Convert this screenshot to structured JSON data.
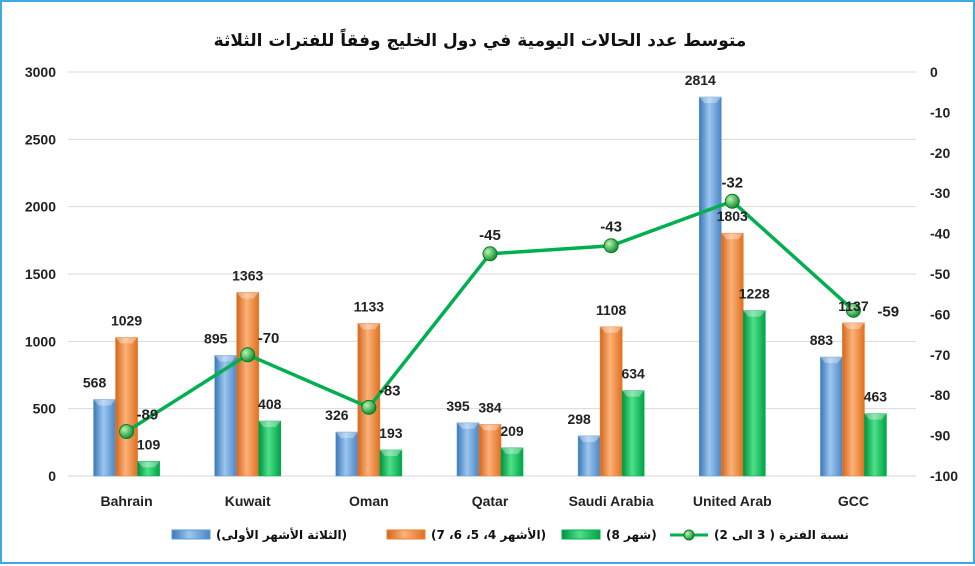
{
  "chart_data": {
    "type": "bar",
    "title": "متوسط عدد الحالات اليومية في دول الخليج وفقاً للفترات الثلاثة",
    "categories": [
      "Bahrain",
      "Kuwait",
      "Oman",
      "Qatar",
      "Saudi Arabia",
      "United Arab",
      "GCC"
    ],
    "series": [
      {
        "name": "(الثلاثة الأشهر الأولى)",
        "color": "#5b9bd5",
        "values": [
          568,
          895,
          326,
          395,
          298,
          2814,
          883
        ]
      },
      {
        "name": "(الأشهر 4، 5، 6، 7)",
        "color": "#ed7d31",
        "values": [
          1029,
          1363,
          1133,
          384,
          1108,
          1803,
          1137
        ]
      },
      {
        "name": "(شهر 8)",
        "color": "#00b050",
        "values": [
          109,
          408,
          193,
          209,
          634,
          1228,
          463
        ]
      }
    ],
    "line_series": {
      "name": "نسبة الفترة ( 3 الى 2)",
      "color": "#00b050",
      "axis": "right",
      "values": [
        -89,
        -70,
        -83,
        -45,
        -43,
        -32,
        -59
      ]
    },
    "ylim": [
      0,
      3000
    ],
    "yticks": [
      0,
      500,
      1000,
      1500,
      2000,
      2500,
      3000
    ],
    "y2lim": [
      -100,
      0
    ],
    "y2ticks": [
      0,
      -10,
      -20,
      -30,
      -40,
      -50,
      -60,
      -70,
      -80,
      -90,
      -100
    ],
    "grid": true,
    "legend": "bottom"
  }
}
